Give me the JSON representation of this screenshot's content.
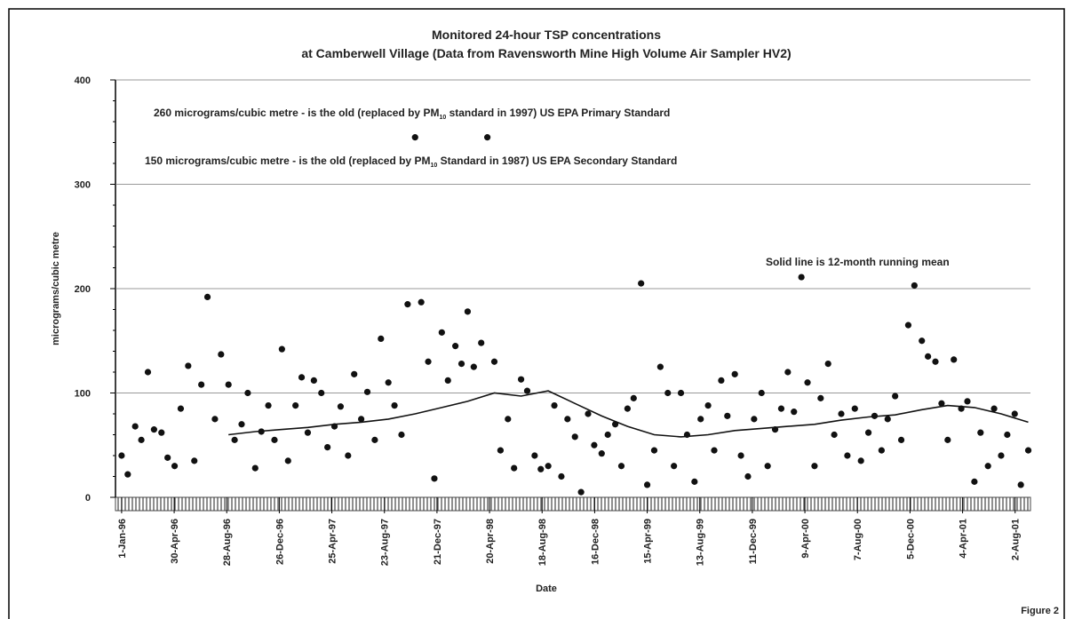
{
  "chart_data": {
    "type": "scatter",
    "title": [
      "Monitored 24-hour TSP concentrations",
      "at Camberwell Village (Data from Ravensworth Mine High Volume Air Sampler HV2)"
    ],
    "x_label": "Date",
    "y_label": "micrograms/cubic metre",
    "figure_label": "Figure 2",
    "annotations": [
      [
        "260 micrograms/cubic metre - is the old (replaced by PM",
        "10",
        " standard in 1997) US EPA Primary Standard"
      ],
      [
        "150 micrograms/cubic metre - is the old (replaced by PM",
        "10",
        " Standard in 1987) US EPA Secondary Standard"
      ],
      [
        "Solid line is 12-month running mean"
      ]
    ],
    "color": "#111111",
    "grid": true,
    "xlim": [
      "1995-12-18",
      "2001-09-06"
    ],
    "xticks": [
      {
        "value": "1996-01-01",
        "label": "1-Jan-96"
      },
      {
        "value": "1996-04-30",
        "label": "30-Apr-96"
      },
      {
        "value": "1996-08-28",
        "label": "28-Aug-96"
      },
      {
        "value": "1996-12-26",
        "label": "26-Dec-96"
      },
      {
        "value": "1997-04-25",
        "label": "25-Apr-97"
      },
      {
        "value": "1997-08-23",
        "label": "23-Aug-97"
      },
      {
        "value": "1997-12-21",
        "label": "21-Dec-97"
      },
      {
        "value": "1998-04-20",
        "label": "20-Apr-98"
      },
      {
        "value": "1998-08-18",
        "label": "18-Aug-98"
      },
      {
        "value": "1998-12-16",
        "label": "16-Dec-98"
      },
      {
        "value": "1999-04-15",
        "label": "15-Apr-99"
      },
      {
        "value": "1999-08-13",
        "label": "13-Aug-99"
      },
      {
        "value": "1999-12-11",
        "label": "11-Dec-99"
      },
      {
        "value": "2000-04-09",
        "label": "9-Apr-00"
      },
      {
        "value": "2000-08-07",
        "label": "7-Aug-00"
      },
      {
        "value": "2000-12-05",
        "label": "5-Dec-00"
      },
      {
        "value": "2001-04-04",
        "label": "4-Apr-01"
      },
      {
        "value": "2001-08-02",
        "label": "2-Aug-01"
      }
    ],
    "ylim": [
      0,
      400
    ],
    "yticks": [
      0,
      100,
      200,
      300,
      400
    ],
    "x": [
      "1996-01-01",
      "1996-01-15",
      "1996-02-01",
      "1996-02-15",
      "1996-03-01",
      "1996-03-15",
      "1996-04-01",
      "1996-04-15",
      "1996-05-01",
      "1996-05-15",
      "1996-06-01",
      "1996-06-15",
      "1996-07-01",
      "1996-07-15",
      "1996-08-01",
      "1996-08-15",
      "1996-09-01",
      "1996-09-15",
      "1996-10-01",
      "1996-10-15",
      "1996-11-01",
      "1996-11-15",
      "1996-12-01",
      "1996-12-15",
      "1997-01-01",
      "1997-01-15",
      "1997-02-01",
      "1997-02-15",
      "1997-03-01",
      "1997-03-15",
      "1997-04-01",
      "1997-04-15",
      "1997-05-01",
      "1997-05-15",
      "1997-06-01",
      "1997-06-15",
      "1997-07-01",
      "1997-07-15",
      "1997-08-01",
      "1997-08-15",
      "1997-09-01",
      "1997-09-15",
      "1997-10-01",
      "1997-10-15",
      "1997-11-01",
      "1997-11-15",
      "1997-12-01",
      "1997-12-15",
      "1998-01-01",
      "1998-01-15",
      "1998-02-01",
      "1998-02-15",
      "1998-03-01",
      "1998-03-15",
      "1998-04-01",
      "1998-04-15",
      "1998-05-01",
      "1998-05-15",
      "1998-06-01",
      "1998-06-15",
      "1998-07-01",
      "1998-07-15",
      "1998-08-01",
      "1998-08-15",
      "1998-09-01",
      "1998-09-15",
      "1998-10-01",
      "1998-10-15",
      "1998-11-01",
      "1998-11-15",
      "1998-12-01",
      "1998-12-15",
      "1999-01-01",
      "1999-01-15",
      "1999-02-01",
      "1999-02-15",
      "1999-03-01",
      "1999-03-15",
      "1999-04-01",
      "1999-04-15",
      "1999-05-01",
      "1999-05-15",
      "1999-06-01",
      "1999-06-15",
      "1999-07-01",
      "1999-07-15",
      "1999-08-01",
      "1999-08-15",
      "1999-09-01",
      "1999-09-15",
      "1999-10-01",
      "1999-10-15",
      "1999-11-01",
      "1999-11-15",
      "1999-12-01",
      "1999-12-15",
      "2000-01-01",
      "2000-01-15",
      "2000-02-01",
      "2000-02-15",
      "2000-03-01",
      "2000-03-15",
      "2000-04-01",
      "2000-04-15",
      "2000-05-01",
      "2000-05-15",
      "2000-06-01",
      "2000-06-15",
      "2000-07-01",
      "2000-07-15",
      "2000-08-01",
      "2000-08-15",
      "2000-09-01",
      "2000-09-15",
      "2000-10-01",
      "2000-10-15",
      "2000-11-01",
      "2000-11-15",
      "2000-12-01",
      "2000-12-15",
      "2001-01-01",
      "2001-01-15",
      "2001-02-01",
      "2001-02-15",
      "2001-03-01",
      "2001-03-15",
      "2001-04-01",
      "2001-04-15",
      "2001-05-01",
      "2001-05-15",
      "2001-06-01",
      "2001-06-15",
      "2001-07-01",
      "2001-07-15",
      "2001-08-01",
      "2001-08-15",
      "2001-09-01"
    ],
    "values": [
      40,
      22,
      68,
      55,
      120,
      65,
      62,
      38,
      30,
      85,
      126,
      35,
      108,
      192,
      75,
      137,
      108,
      55,
      70,
      100,
      28,
      63,
      88,
      55,
      142,
      35,
      88,
      115,
      62,
      112,
      100,
      48,
      68,
      87,
      40,
      118,
      75,
      101,
      55,
      152,
      110,
      88,
      60,
      185,
      345,
      187,
      130,
      18,
      158,
      112,
      145,
      128,
      178,
      125,
      148,
      345,
      130,
      45,
      75,
      28,
      113,
      102,
      40,
      27,
      30,
      88,
      20,
      75,
      58,
      5,
      80,
      50,
      42,
      60,
      70,
      30,
      85,
      95,
      205,
      12,
      45,
      125,
      100,
      30,
      100,
      60,
      15,
      75,
      88,
      45,
      112,
      78,
      118,
      40,
      20,
      75,
      100,
      30,
      65,
      85,
      120,
      82,
      211,
      110,
      30,
      95,
      128,
      60,
      80,
      40,
      85,
      35,
      62,
      78,
      45,
      75,
      97,
      55,
      165,
      203,
      150,
      135,
      130,
      90,
      55,
      132,
      85,
      92,
      15,
      62,
      30,
      85,
      40,
      60,
      80,
      12,
      45
    ],
    "running_mean": {
      "x": [
        "1996-09-01",
        "1996-11-01",
        "1997-01-01",
        "1997-03-01",
        "1997-05-01",
        "1997-07-01",
        "1997-09-01",
        "1997-11-01",
        "1998-01-01",
        "1998-03-01",
        "1998-05-01",
        "1998-07-01",
        "1998-09-01",
        "1998-11-01",
        "1999-01-01",
        "1999-03-01",
        "1999-05-01",
        "1999-07-01",
        "1999-09-01",
        "1999-11-01",
        "2000-01-01",
        "2000-03-01",
        "2000-05-01",
        "2000-07-01",
        "2000-09-01",
        "2000-11-01",
        "2001-01-01",
        "2001-03-01",
        "2001-05-01",
        "2001-07-01",
        "2001-09-01"
      ],
      "values": [
        60,
        63,
        65,
        67,
        70,
        72,
        75,
        80,
        86,
        92,
        100,
        97,
        102,
        90,
        78,
        68,
        60,
        58,
        60,
        64,
        66,
        68,
        70,
        74,
        77,
        79,
        84,
        88,
        86,
        80,
        72
      ]
    }
  }
}
